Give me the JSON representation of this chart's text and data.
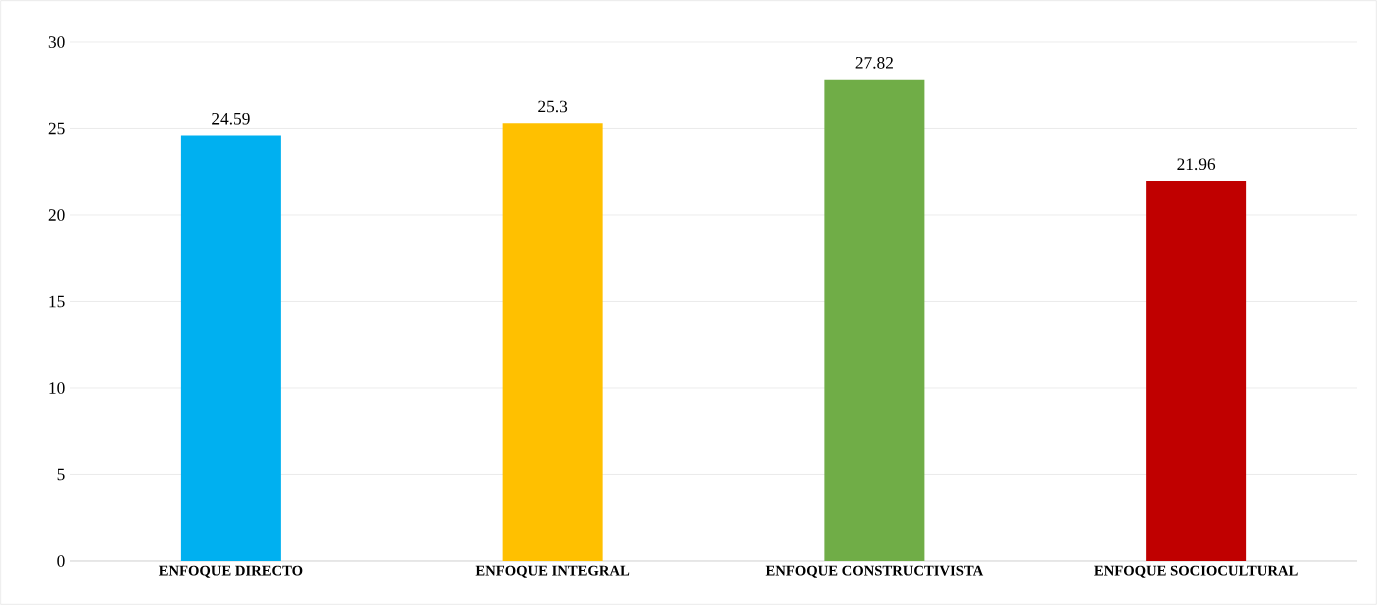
{
  "chart_data": {
    "type": "bar",
    "categories": [
      "ENFOQUE DIRECTO",
      "ENFOQUE INTEGRAL",
      "ENFOQUE CONSTRUCTIVISTA",
      "ENFOQUE SOCIOCULTURAL"
    ],
    "values": [
      24.59,
      25.3,
      27.82,
      21.96
    ],
    "colors": [
      "#00b0f0",
      "#ffc000",
      "#70ad47",
      "#c00000"
    ],
    "ylim": [
      0,
      30
    ],
    "yticks": [
      0,
      5,
      10,
      15,
      20,
      25,
      30
    ],
    "grid": "y",
    "data_labels": true
  }
}
